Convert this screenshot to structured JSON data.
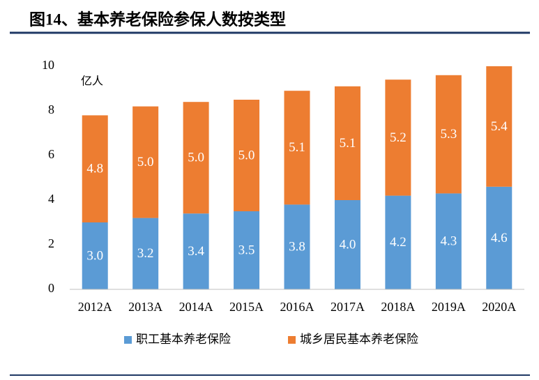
{
  "chart_data": {
    "type": "stacked_bar",
    "title": "图14、基本养老保险参保人数按类型",
    "unit": "亿人",
    "categories": [
      "2012A",
      "2013A",
      "2014A",
      "2015A",
      "2016A",
      "2017A",
      "2018A",
      "2019A",
      "2020A"
    ],
    "series": [
      {
        "name": "职工基本养老保险",
        "color": "#5b9bd5",
        "values": [
          3.0,
          3.2,
          3.4,
          3.5,
          3.8,
          4.0,
          4.2,
          4.3,
          4.6
        ],
        "value_labels": [
          "3.0",
          "3.2",
          "3.4",
          "3.5",
          "3.8",
          "4.0",
          "4.2",
          "4.3",
          "4.6"
        ]
      },
      {
        "name": "城乡居民基本养老保险",
        "color": "#ed7d31",
        "values": [
          4.8,
          5.0,
          5.0,
          5.0,
          5.1,
          5.1,
          5.2,
          5.3,
          5.4
        ],
        "value_labels": [
          "4.8",
          "5.0",
          "5.0",
          "5.0",
          "5.1",
          "5.1",
          "5.2",
          "5.3",
          "5.4"
        ]
      }
    ],
    "ylim": [
      0,
      10
    ],
    "yticks": [
      0,
      2,
      4,
      6,
      8,
      10
    ],
    "grid": false,
    "legend": "bottom"
  }
}
